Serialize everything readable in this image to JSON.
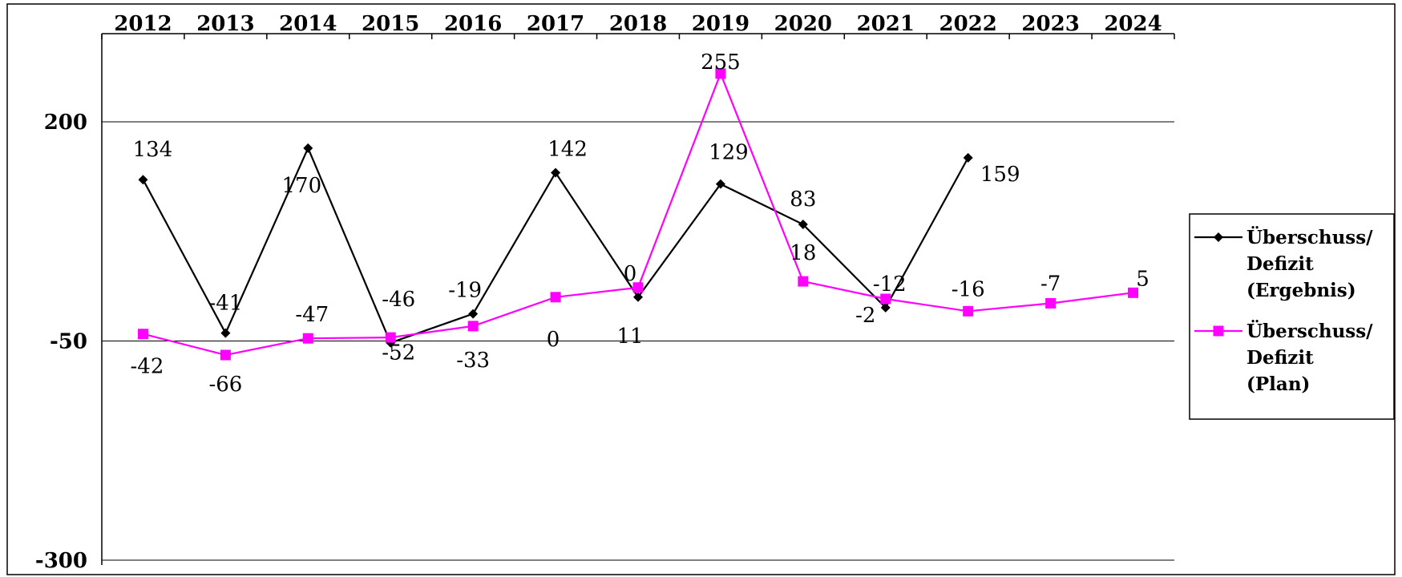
{
  "chart_data": {
    "type": "line",
    "x": [
      "2012",
      "2013",
      "2014",
      "2015",
      "2016",
      "2017",
      "2018",
      "2019",
      "2020",
      "2021",
      "2022",
      "2023",
      "2024"
    ],
    "ylim": [
      -300,
      300
    ],
    "yticks": [
      "200",
      "-50",
      "-300"
    ],
    "xaxis_position": "top",
    "grid": "horizontal",
    "legend_position": "right",
    "series": [
      {
        "name": [
          "Überschuss/",
          "Defizit",
          "(Ergebnis)"
        ],
        "color": "#000000",
        "marker": "diamond",
        "values": [
          134,
          -41,
          170,
          -52,
          -19,
          142,
          0,
          129,
          83,
          -12,
          159,
          null,
          null
        ],
        "labels": [
          "134",
          "-41",
          "170",
          "-52",
          "-19",
          "142",
          "0",
          "129",
          "83",
          "-12",
          "159",
          null,
          null
        ]
      },
      {
        "name": [
          "Überschuss/",
          "Defizit",
          "(Plan)"
        ],
        "color": "#ff00ff",
        "marker": "square",
        "values": [
          -42,
          -66,
          -47,
          -46,
          -33,
          0,
          11,
          255,
          18,
          -2,
          -16,
          -7,
          5
        ],
        "labels": [
          "-42",
          "-66",
          "-47",
          "-46",
          "-33",
          "0",
          "11",
          "255",
          "18",
          "-2",
          "-16",
          "-7",
          "5"
        ]
      }
    ]
  }
}
